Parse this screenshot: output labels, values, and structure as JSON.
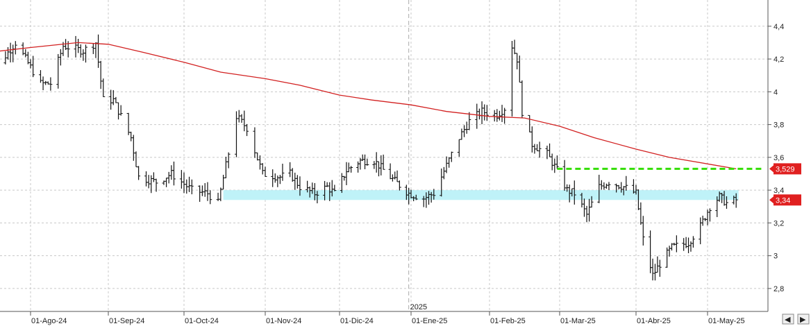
{
  "chart_data": {
    "type": "ohlc",
    "title": "",
    "year_marker": "2025",
    "x_ticks": [
      "01-Ago-24",
      "01-Sep-24",
      "01-Oct-24",
      "01-Nov-24",
      "01-Dic-24",
      "01-Ene-25",
      "01-Feb-25",
      "01-Mar-25",
      "01-Abr-25",
      "01-May-25"
    ],
    "y_ticks": [
      "4,4",
      "4,2",
      "4",
      "3,8",
      "3,6",
      "3,4",
      "3,2",
      "3",
      "2,8"
    ],
    "y_tick_values": [
      4.4,
      4.2,
      4.0,
      3.8,
      3.6,
      3.4,
      3.2,
      3.0,
      2.8
    ],
    "ylim": [
      2.66,
      4.56
    ],
    "grid": true,
    "last_price_label": "3,34",
    "last_price": 3.34,
    "ma_label": "3,529",
    "ma_value": 3.53,
    "resistance_level": 3.53,
    "support_zone": [
      3.34,
      3.4
    ],
    "moving_average": [
      [
        "2024-07-15",
        4.24
      ],
      [
        "2024-08-01",
        4.27
      ],
      [
        "2024-08-20",
        4.3
      ],
      [
        "2024-09-01",
        4.29
      ],
      [
        "2024-09-15",
        4.24
      ],
      [
        "2024-10-01",
        4.18
      ],
      [
        "2024-10-15",
        4.12
      ],
      [
        "2024-11-01",
        4.08
      ],
      [
        "2024-11-15",
        4.04
      ],
      [
        "2024-12-01",
        3.98
      ],
      [
        "2024-12-15",
        3.95
      ],
      [
        "2025-01-01",
        3.92
      ],
      [
        "2025-01-15",
        3.88
      ],
      [
        "2025-02-01",
        3.85
      ],
      [
        "2025-02-15",
        3.84
      ],
      [
        "2025-03-01",
        3.79
      ],
      [
        "2025-03-15",
        3.72
      ],
      [
        "2025-04-01",
        3.65
      ],
      [
        "2025-04-15",
        3.6
      ],
      [
        "2025-05-01",
        3.56
      ],
      [
        "2025-05-13",
        3.53
      ]
    ],
    "anchors": [
      [
        "2024-07-15",
        4.1
      ],
      [
        "2024-07-22",
        4.22
      ],
      [
        "2024-07-26",
        4.3
      ],
      [
        "2024-08-01",
        4.15
      ],
      [
        "2024-08-05",
        4.05
      ],
      [
        "2024-08-09",
        4.05
      ],
      [
        "2024-08-14",
        4.28
      ],
      [
        "2024-08-22",
        4.25
      ],
      [
        "2024-08-27",
        4.3
      ],
      [
        "2024-08-30",
        3.95
      ],
      [
        "2024-09-03",
        3.95
      ],
      [
        "2024-09-10",
        3.72
      ],
      [
        "2024-09-13",
        3.48
      ],
      [
        "2024-09-20",
        3.45
      ],
      [
        "2024-09-26",
        3.5
      ],
      [
        "2024-10-04",
        3.4
      ],
      [
        "2024-10-10",
        3.38
      ],
      [
        "2024-10-14",
        3.32
      ],
      [
        "2024-10-17",
        3.55
      ],
      [
        "2024-10-21",
        3.85
      ],
      [
        "2024-10-25",
        3.78
      ],
      [
        "2024-10-31",
        3.5
      ],
      [
        "2024-11-07",
        3.48
      ],
      [
        "2024-11-11",
        3.5
      ],
      [
        "2024-11-15",
        3.42
      ],
      [
        "2024-11-21",
        3.38
      ],
      [
        "2024-11-26",
        3.42
      ],
      [
        "2024-11-29",
        3.38
      ],
      [
        "2024-12-04",
        3.52
      ],
      [
        "2024-12-10",
        3.58
      ],
      [
        "2024-12-16",
        3.58
      ],
      [
        "2024-12-23",
        3.48
      ],
      [
        "2024-12-31",
        3.38
      ],
      [
        "2025-01-06",
        3.35
      ],
      [
        "2025-01-10",
        3.38
      ],
      [
        "2025-01-15",
        3.55
      ],
      [
        "2025-01-20",
        3.72
      ],
      [
        "2025-01-24",
        3.82
      ],
      [
        "2025-01-29",
        3.88
      ],
      [
        "2025-02-04",
        3.86
      ],
      [
        "2025-02-07",
        3.9
      ],
      [
        "2025-02-10",
        4.28
      ],
      [
        "2025-02-12",
        4.2
      ],
      [
        "2025-02-14",
        3.88
      ],
      [
        "2025-02-18",
        3.68
      ],
      [
        "2025-02-24",
        3.62
      ],
      [
        "2025-02-28",
        3.52
      ],
      [
        "2025-03-04",
        3.4
      ],
      [
        "2025-03-07",
        3.38
      ],
      [
        "2025-03-12",
        3.25
      ],
      [
        "2025-03-17",
        3.42
      ],
      [
        "2025-03-21",
        3.45
      ],
      [
        "2025-03-27",
        3.42
      ],
      [
        "2025-04-01",
        3.38
      ],
      [
        "2025-04-04",
        3.1
      ],
      [
        "2025-04-08",
        2.88
      ],
      [
        "2025-04-11",
        2.95
      ],
      [
        "2025-04-16",
        3.05
      ],
      [
        "2025-04-23",
        3.08
      ],
      [
        "2025-04-28",
        3.18
      ],
      [
        "2025-05-02",
        3.3
      ],
      [
        "2025-05-06",
        3.36
      ],
      [
        "2025-05-09",
        3.32
      ],
      [
        "2025-05-13",
        3.34
      ]
    ]
  },
  "nav": {
    "prev": "◀",
    "next": "▶"
  }
}
